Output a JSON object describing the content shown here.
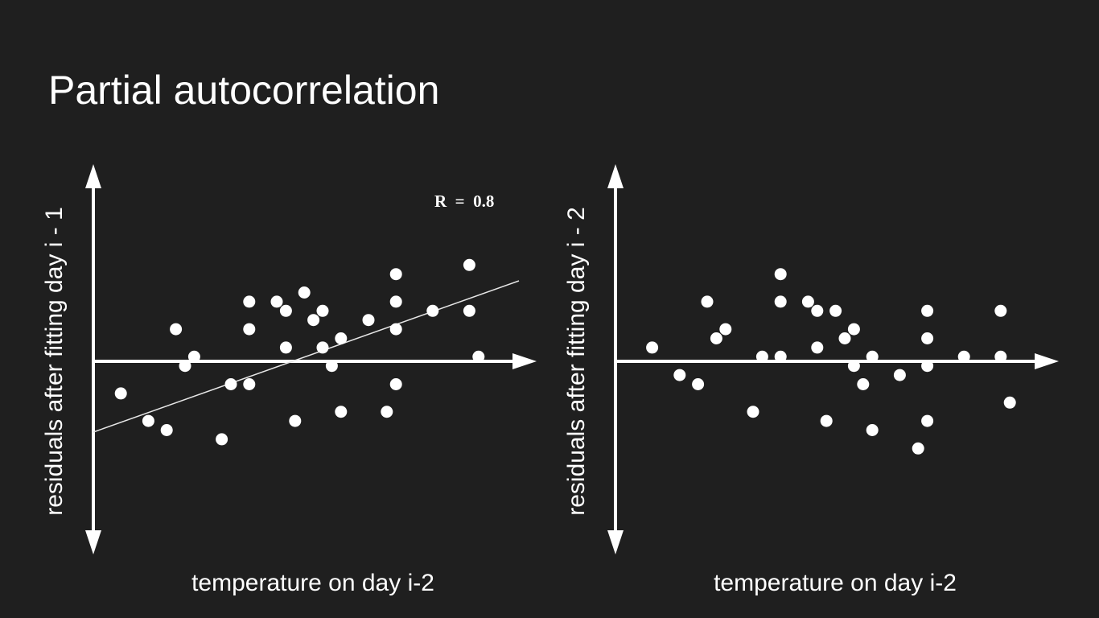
{
  "title": "Partial autocorrelation",
  "colors": {
    "background": "#1f1f1f",
    "foreground": "#ffffff",
    "trend_line": "#e6e6e6"
  },
  "chart_data": [
    {
      "type": "scatter",
      "xlabel": "temperature on day i-2",
      "ylabel": "residuals after fitting day i - 1",
      "annotation": "R  =  0.8",
      "xlim": [
        0,
        48
      ],
      "ylim": [
        -20,
        20
      ],
      "grid": false,
      "axes": "arrows",
      "trend_line": {
        "x": [
          0,
          46.5
        ],
        "y": [
          -7.8,
          8.8
        ]
      },
      "points": [
        {
          "x": 3,
          "y": -3.5
        },
        {
          "x": 6,
          "y": -6.5
        },
        {
          "x": 8,
          "y": -7.5
        },
        {
          "x": 9,
          "y": 3.5
        },
        {
          "x": 10,
          "y": -0.5
        },
        {
          "x": 11,
          "y": 0.5
        },
        {
          "x": 14,
          "y": -8.5
        },
        {
          "x": 15,
          "y": -2.5
        },
        {
          "x": 17,
          "y": -2.5
        },
        {
          "x": 17,
          "y": 3.5
        },
        {
          "x": 17,
          "y": 6.5
        },
        {
          "x": 20,
          "y": 6.5
        },
        {
          "x": 21,
          "y": 5.5
        },
        {
          "x": 21,
          "y": 1.5
        },
        {
          "x": 22,
          "y": -6.5
        },
        {
          "x": 23,
          "y": 7.5
        },
        {
          "x": 24,
          "y": 4.5
        },
        {
          "x": 25,
          "y": 5.5
        },
        {
          "x": 25,
          "y": 1.5
        },
        {
          "x": 26,
          "y": -0.5
        },
        {
          "x": 27,
          "y": 2.5
        },
        {
          "x": 27,
          "y": -5.5
        },
        {
          "x": 30,
          "y": 4.5
        },
        {
          "x": 32,
          "y": -5.5
        },
        {
          "x": 33,
          "y": 9.5
        },
        {
          "x": 33,
          "y": 6.5
        },
        {
          "x": 33,
          "y": 3.5
        },
        {
          "x": 33,
          "y": -2.5
        },
        {
          "x": 37,
          "y": 5.5
        },
        {
          "x": 41,
          "y": 10.5
        },
        {
          "x": 41,
          "y": 5.5
        },
        {
          "x": 42,
          "y": 0.5
        }
      ]
    },
    {
      "type": "scatter",
      "xlabel": "temperature on day i-2",
      "ylabel": "residuals after fitting day i - 2",
      "xlim": [
        0,
        48
      ],
      "ylim": [
        -20,
        20
      ],
      "grid": false,
      "axes": "arrows",
      "points": [
        {
          "x": 4,
          "y": 1.5
        },
        {
          "x": 7,
          "y": -1.5
        },
        {
          "x": 9,
          "y": -2.5
        },
        {
          "x": 10,
          "y": 6.5
        },
        {
          "x": 11,
          "y": 2.5
        },
        {
          "x": 12,
          "y": 3.5
        },
        {
          "x": 15,
          "y": -5.5
        },
        {
          "x": 16,
          "y": 0.5
        },
        {
          "x": 18,
          "y": 9.5
        },
        {
          "x": 18,
          "y": 6.5
        },
        {
          "x": 18,
          "y": 0.5
        },
        {
          "x": 21,
          "y": 6.5
        },
        {
          "x": 22,
          "y": 5.5
        },
        {
          "x": 22,
          "y": 1.5
        },
        {
          "x": 23,
          "y": -6.5
        },
        {
          "x": 24,
          "y": 5.5
        },
        {
          "x": 25,
          "y": 2.5
        },
        {
          "x": 26,
          "y": 3.5
        },
        {
          "x": 26,
          "y": -0.5
        },
        {
          "x": 27,
          "y": -2.5
        },
        {
          "x": 28,
          "y": 0.5
        },
        {
          "x": 28,
          "y": -7.5
        },
        {
          "x": 31,
          "y": -1.5
        },
        {
          "x": 33,
          "y": -9.5
        },
        {
          "x": 34,
          "y": 5.5
        },
        {
          "x": 34,
          "y": 2.5
        },
        {
          "x": 34,
          "y": -0.5
        },
        {
          "x": 34,
          "y": -6.5
        },
        {
          "x": 38,
          "y": 0.5
        },
        {
          "x": 42,
          "y": 5.5
        },
        {
          "x": 42,
          "y": 0.5
        },
        {
          "x": 43,
          "y": -4.5
        }
      ]
    }
  ]
}
